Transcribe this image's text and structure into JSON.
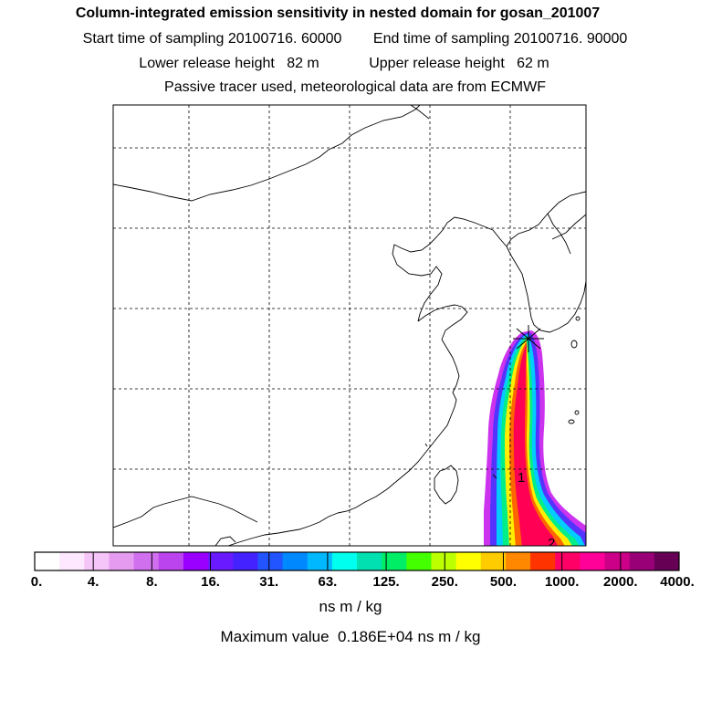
{
  "header": {
    "title": "Column-integrated emission sensitivity in nested domain for gosan_201007",
    "start_label": "Start time of sampling",
    "start_value": "20100716. 60000",
    "end_label": "End time of sampling",
    "end_value": "20100716. 90000",
    "lower_label": "Lower release height",
    "lower_value": "82 m",
    "upper_label": "Upper release height",
    "upper_value": "62 m",
    "note": "Passive tracer used, meteorological data are from ECMWF"
  },
  "map": {
    "plume_labels": [
      "1",
      "2"
    ],
    "release_marker": "station-star-icon"
  },
  "colorbar": {
    "ticks": [
      "0.",
      "4.",
      "8.",
      "16.",
      "31.",
      "63.",
      "125.",
      "250.",
      "500.",
      "1000.",
      "2000.",
      "4000."
    ],
    "colors": [
      "#ffffff",
      "#fde8ff",
      "#f5c4f8",
      "#e59cf0",
      "#d070ee",
      "#bb44ee",
      "#9900ff",
      "#6a1aff",
      "#4422ff",
      "#2255ff",
      "#0088ff",
      "#00b8ff",
      "#00ffee",
      "#00e0b0",
      "#00ee66",
      "#44ff00",
      "#bbff00",
      "#ffff00",
      "#ffcc00",
      "#ff8800",
      "#ff3300",
      "#ff0066",
      "#ff0099",
      "#cc0088",
      "#990077",
      "#660055"
    ],
    "units": "ns m / kg",
    "max_label": "Maximum value",
    "max_value": "0.186E+04",
    "max_units": "ns m / kg"
  }
}
